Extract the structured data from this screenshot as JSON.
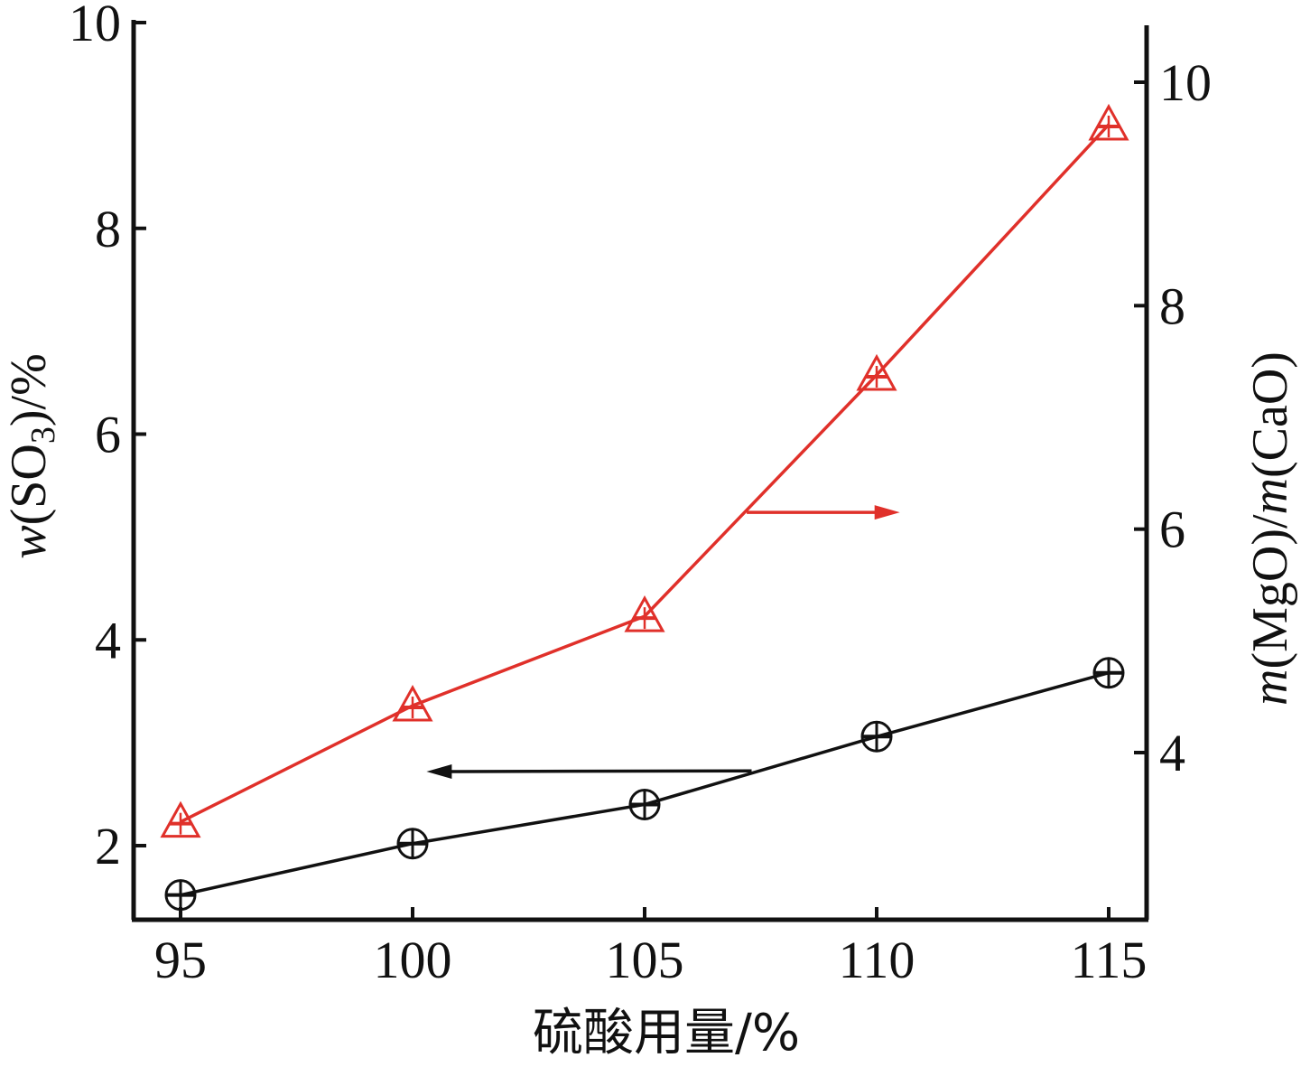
{
  "chart_data": {
    "type": "line",
    "x": [
      95,
      100,
      105,
      110,
      115
    ],
    "xlabel": "硫酸用量/%",
    "xticks": [
      "95",
      "100",
      "105",
      "110",
      "115"
    ],
    "ylabel_left_pre": "w",
    "ylabel_left_mid": "(SO",
    "ylabel_left_sub": "3",
    "ylabel_left_post": ")/%",
    "ylabel_right_m1": "m",
    "ylabel_right_mid": "(MgO)/",
    "ylabel_right_m2": "m",
    "ylabel_right_post": "(CaO)",
    "ylim_left": [
      1.3,
      10
    ],
    "ylim_right": [
      2.6,
      10.5
    ],
    "yticks_left": [
      "2",
      "4",
      "6",
      "8",
      "10"
    ],
    "yticks_right": [
      "4",
      "6",
      "8",
      "10"
    ],
    "series": [
      {
        "axis": "left",
        "marker": "circle-plus",
        "color": "#111111",
        "values": [
          1.52,
          2.02,
          2.4,
          3.06,
          3.68
        ]
      },
      {
        "axis": "right",
        "marker": "triangle",
        "color": "#e0302a",
        "values": [
          3.38,
          4.42,
          5.22,
          7.38,
          9.62
        ]
      }
    ],
    "annotations": [
      {
        "type": "arrow",
        "points_to": "left-axis",
        "color": "#111111"
      },
      {
        "type": "arrow",
        "points_to": "right-axis",
        "color": "#e0302a"
      }
    ],
    "grid": false
  }
}
